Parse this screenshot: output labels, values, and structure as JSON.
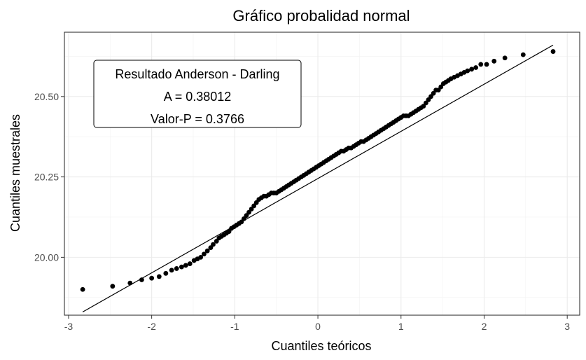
{
  "chart_data": {
    "type": "scatter",
    "title": "Gráfico probalidad normal",
    "xlabel": "Cuantiles teóricos",
    "ylabel": "Cuantiles muestrales",
    "xlim": [
      -3.05,
      3.15
    ],
    "ylim": [
      19.82,
      20.7
    ],
    "x_ticks": [
      -3,
      -2,
      -1,
      0,
      1,
      2,
      3
    ],
    "x_tick_labels": [
      "-3",
      "-2",
      "-1",
      "0",
      "1",
      "2",
      "3"
    ],
    "y_ticks": [
      20.0,
      20.25,
      20.5
    ],
    "y_tick_labels": [
      "20.00",
      "20.25",
      "20.50"
    ],
    "grid": true,
    "reference_line": {
      "x": [
        -2.83,
        2.83
      ],
      "y": [
        19.83,
        20.66
      ]
    },
    "annotation": {
      "lines": [
        "Resultado Anderson - Darling",
        "A = 0.38012",
        "Valor-P = 0.3766"
      ],
      "position": "top-left"
    },
    "points": {
      "x": [
        -2.83,
        -2.47,
        -2.26,
        -2.12,
        -2.0,
        -1.91,
        -1.83,
        -1.76,
        -1.7,
        -1.64,
        -1.59,
        -1.54,
        -1.49,
        -1.45,
        -1.41,
        -1.37,
        -1.33,
        -1.29,
        -1.26,
        -1.22,
        -1.19,
        -1.16,
        -1.13,
        -1.1,
        -1.07,
        -1.04,
        -1.01,
        -0.98,
        -0.95,
        -0.92,
        -0.89,
        -0.86,
        -0.83,
        -0.8,
        -0.77,
        -0.74,
        -0.71,
        -0.68,
        -0.65,
        -0.62,
        -0.59,
        -0.56,
        -0.53,
        -0.5,
        -0.47,
        -0.44,
        -0.41,
        -0.38,
        -0.35,
        -0.32,
        -0.29,
        -0.26,
        -0.23,
        -0.2,
        -0.17,
        -0.14,
        -0.11,
        -0.08,
        -0.05,
        -0.02,
        0.01,
        0.04,
        0.07,
        0.1,
        0.13,
        0.16,
        0.19,
        0.22,
        0.25,
        0.28,
        0.31,
        0.34,
        0.37,
        0.4,
        0.43,
        0.46,
        0.49,
        0.52,
        0.55,
        0.58,
        0.61,
        0.64,
        0.67,
        0.7,
        0.73,
        0.76,
        0.79,
        0.82,
        0.85,
        0.88,
        0.91,
        0.94,
        0.97,
        1.0,
        1.03,
        1.06,
        1.09,
        1.12,
        1.15,
        1.18,
        1.21,
        1.24,
        1.27,
        1.3,
        1.33,
        1.36,
        1.39,
        1.42,
        1.45,
        1.48,
        1.51,
        1.54,
        1.57,
        1.6,
        1.64,
        1.68,
        1.72,
        1.76,
        1.8,
        1.85,
        1.9,
        1.96,
        2.03,
        2.12,
        2.25,
        2.47,
        2.83
      ],
      "y": [
        19.9,
        19.91,
        19.92,
        19.93,
        19.935,
        19.94,
        19.95,
        19.96,
        19.965,
        19.97,
        19.975,
        19.98,
        19.99,
        19.995,
        20.0,
        20.01,
        20.02,
        20.03,
        20.04,
        20.05,
        20.06,
        20.065,
        20.07,
        20.075,
        20.08,
        20.09,
        20.095,
        20.1,
        20.105,
        20.11,
        20.12,
        20.13,
        20.14,
        20.15,
        20.16,
        20.17,
        20.18,
        20.185,
        20.19,
        20.19,
        20.195,
        20.2,
        20.2,
        20.2,
        20.205,
        20.21,
        20.215,
        20.22,
        20.225,
        20.23,
        20.235,
        20.24,
        20.245,
        20.25,
        20.255,
        20.26,
        20.265,
        20.27,
        20.275,
        20.28,
        20.285,
        20.29,
        20.295,
        20.3,
        20.305,
        20.31,
        20.315,
        20.32,
        20.325,
        20.33,
        20.33,
        20.335,
        20.34,
        20.34,
        20.345,
        20.35,
        20.355,
        20.36,
        20.36,
        20.365,
        20.37,
        20.375,
        20.38,
        20.385,
        20.39,
        20.395,
        20.4,
        20.405,
        20.41,
        20.415,
        20.42,
        20.425,
        20.43,
        20.435,
        20.44,
        20.44,
        20.44,
        20.445,
        20.45,
        20.455,
        20.46,
        20.465,
        20.47,
        20.48,
        20.49,
        20.5,
        20.51,
        20.52,
        20.52,
        20.53,
        20.54,
        20.545,
        20.55,
        20.555,
        20.56,
        20.565,
        20.57,
        20.575,
        20.58,
        20.585,
        20.59,
        20.6,
        20.6,
        20.61,
        20.62,
        20.63,
        20.64
      ]
    }
  }
}
